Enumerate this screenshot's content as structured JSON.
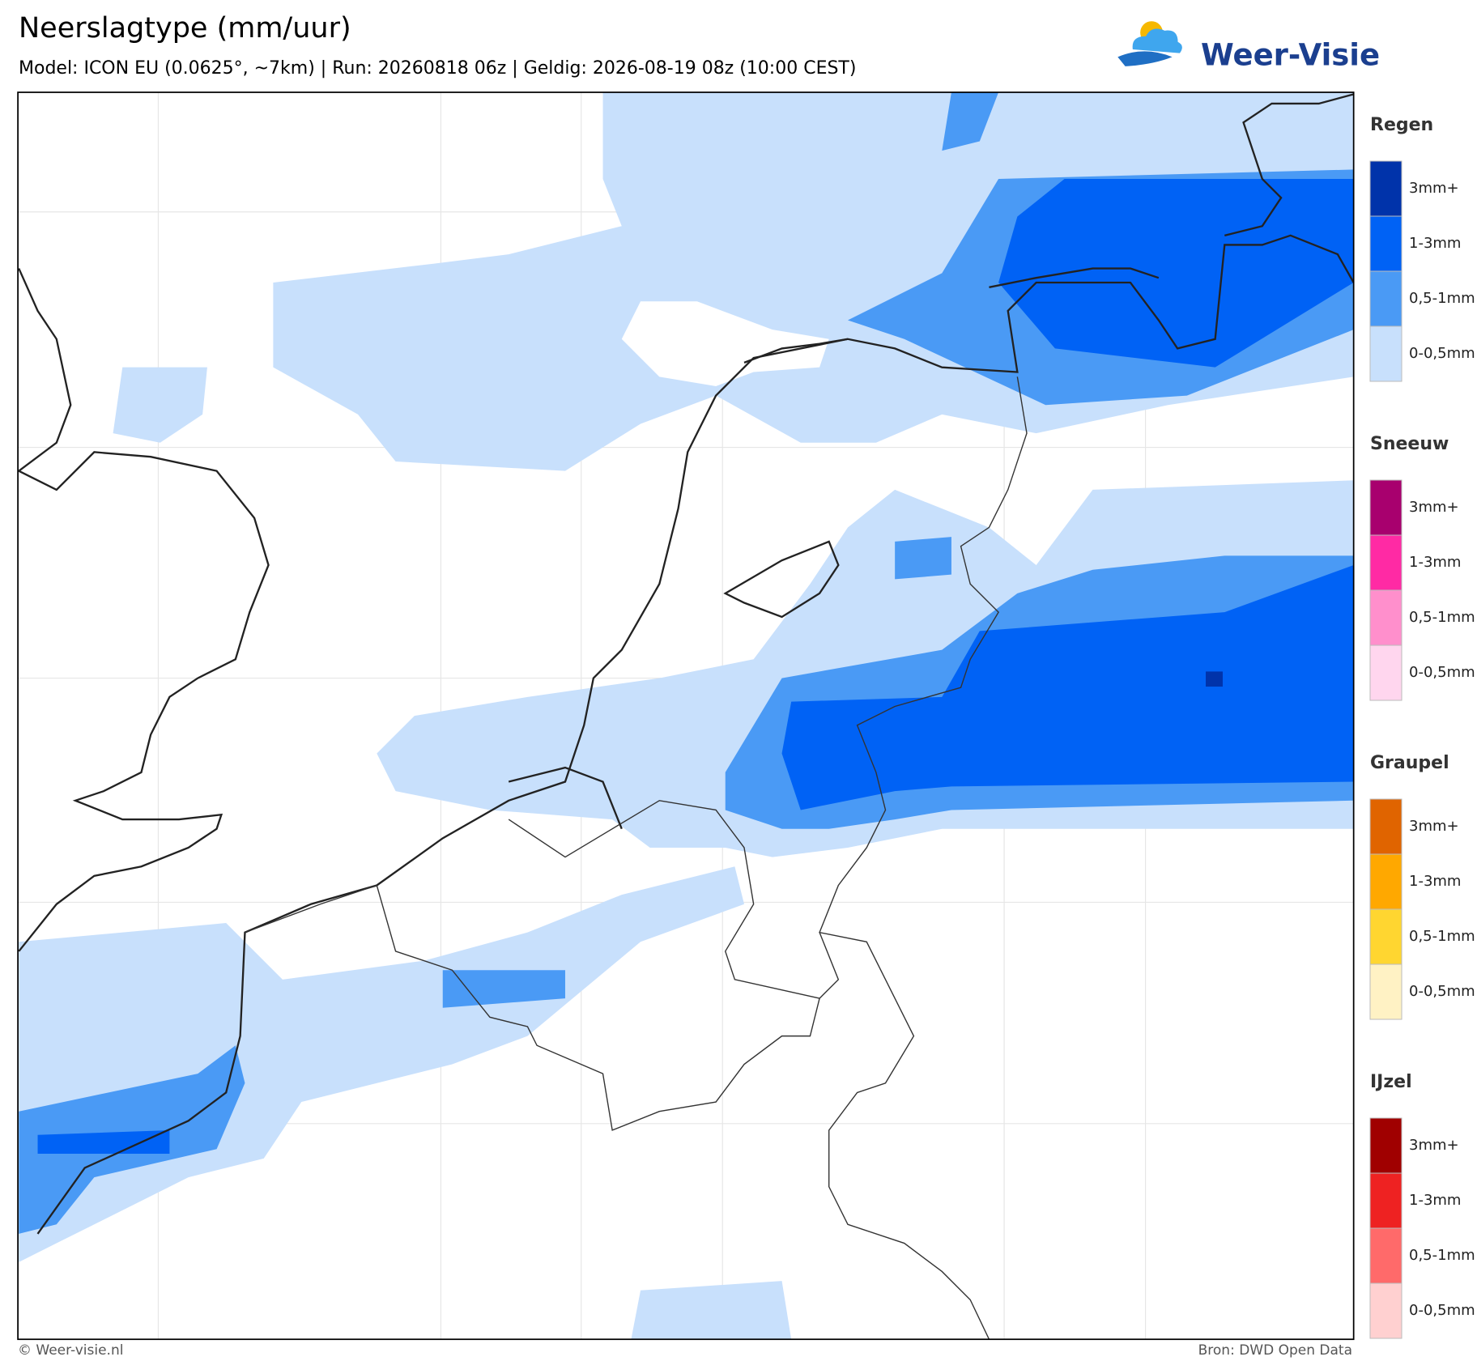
{
  "header": {
    "title": "Neerslagtype (mm/uur)",
    "subtitle": "Model: ICON EU (0.0625°, ~7km)  |  Run: 20260818 06z  |  Geldig: 2026-08-19 08z (10:00 CEST)"
  },
  "logo": {
    "text": "Weer-Visie"
  },
  "legend": {
    "groups": [
      {
        "title": "Regen",
        "items": [
          {
            "label": "3mm+",
            "color": "#0033aa"
          },
          {
            "label": "1-3mm",
            "color": "#0062f5"
          },
          {
            "label": "0,5-1mm",
            "color": "#4a9af5"
          },
          {
            "label": "0-0,5mm",
            "color": "#c8e0fc"
          }
        ]
      },
      {
        "title": "Sneeuw",
        "items": [
          {
            "label": "3mm+",
            "color": "#a8006e"
          },
          {
            "label": "1-3mm",
            "color": "#ff2aa4"
          },
          {
            "label": "0,5-1mm",
            "color": "#ff8fcc"
          },
          {
            "label": "0-0,5mm",
            "color": "#ffd6ee"
          }
        ]
      },
      {
        "title": "Graupel",
        "items": [
          {
            "label": "3mm+",
            "color": "#e06400"
          },
          {
            "label": "1-3mm",
            "color": "#ffa800"
          },
          {
            "label": "0,5-1mm",
            "color": "#ffd630"
          },
          {
            "label": "0-0,5mm",
            "color": "#fff2c4"
          }
        ]
      },
      {
        "title": "IJzel",
        "items": [
          {
            "label": "3mm+",
            "color": "#a00000"
          },
          {
            "label": "1-3mm",
            "color": "#ee2222"
          },
          {
            "label": "0,5-1mm",
            "color": "#ff6a6a"
          },
          {
            "label": "0-0,5mm",
            "color": "#ffd0d0"
          }
        ]
      }
    ]
  },
  "footer": {
    "left": "© Weer-visie.nl",
    "right": "Bron: DWD Open Data"
  }
}
